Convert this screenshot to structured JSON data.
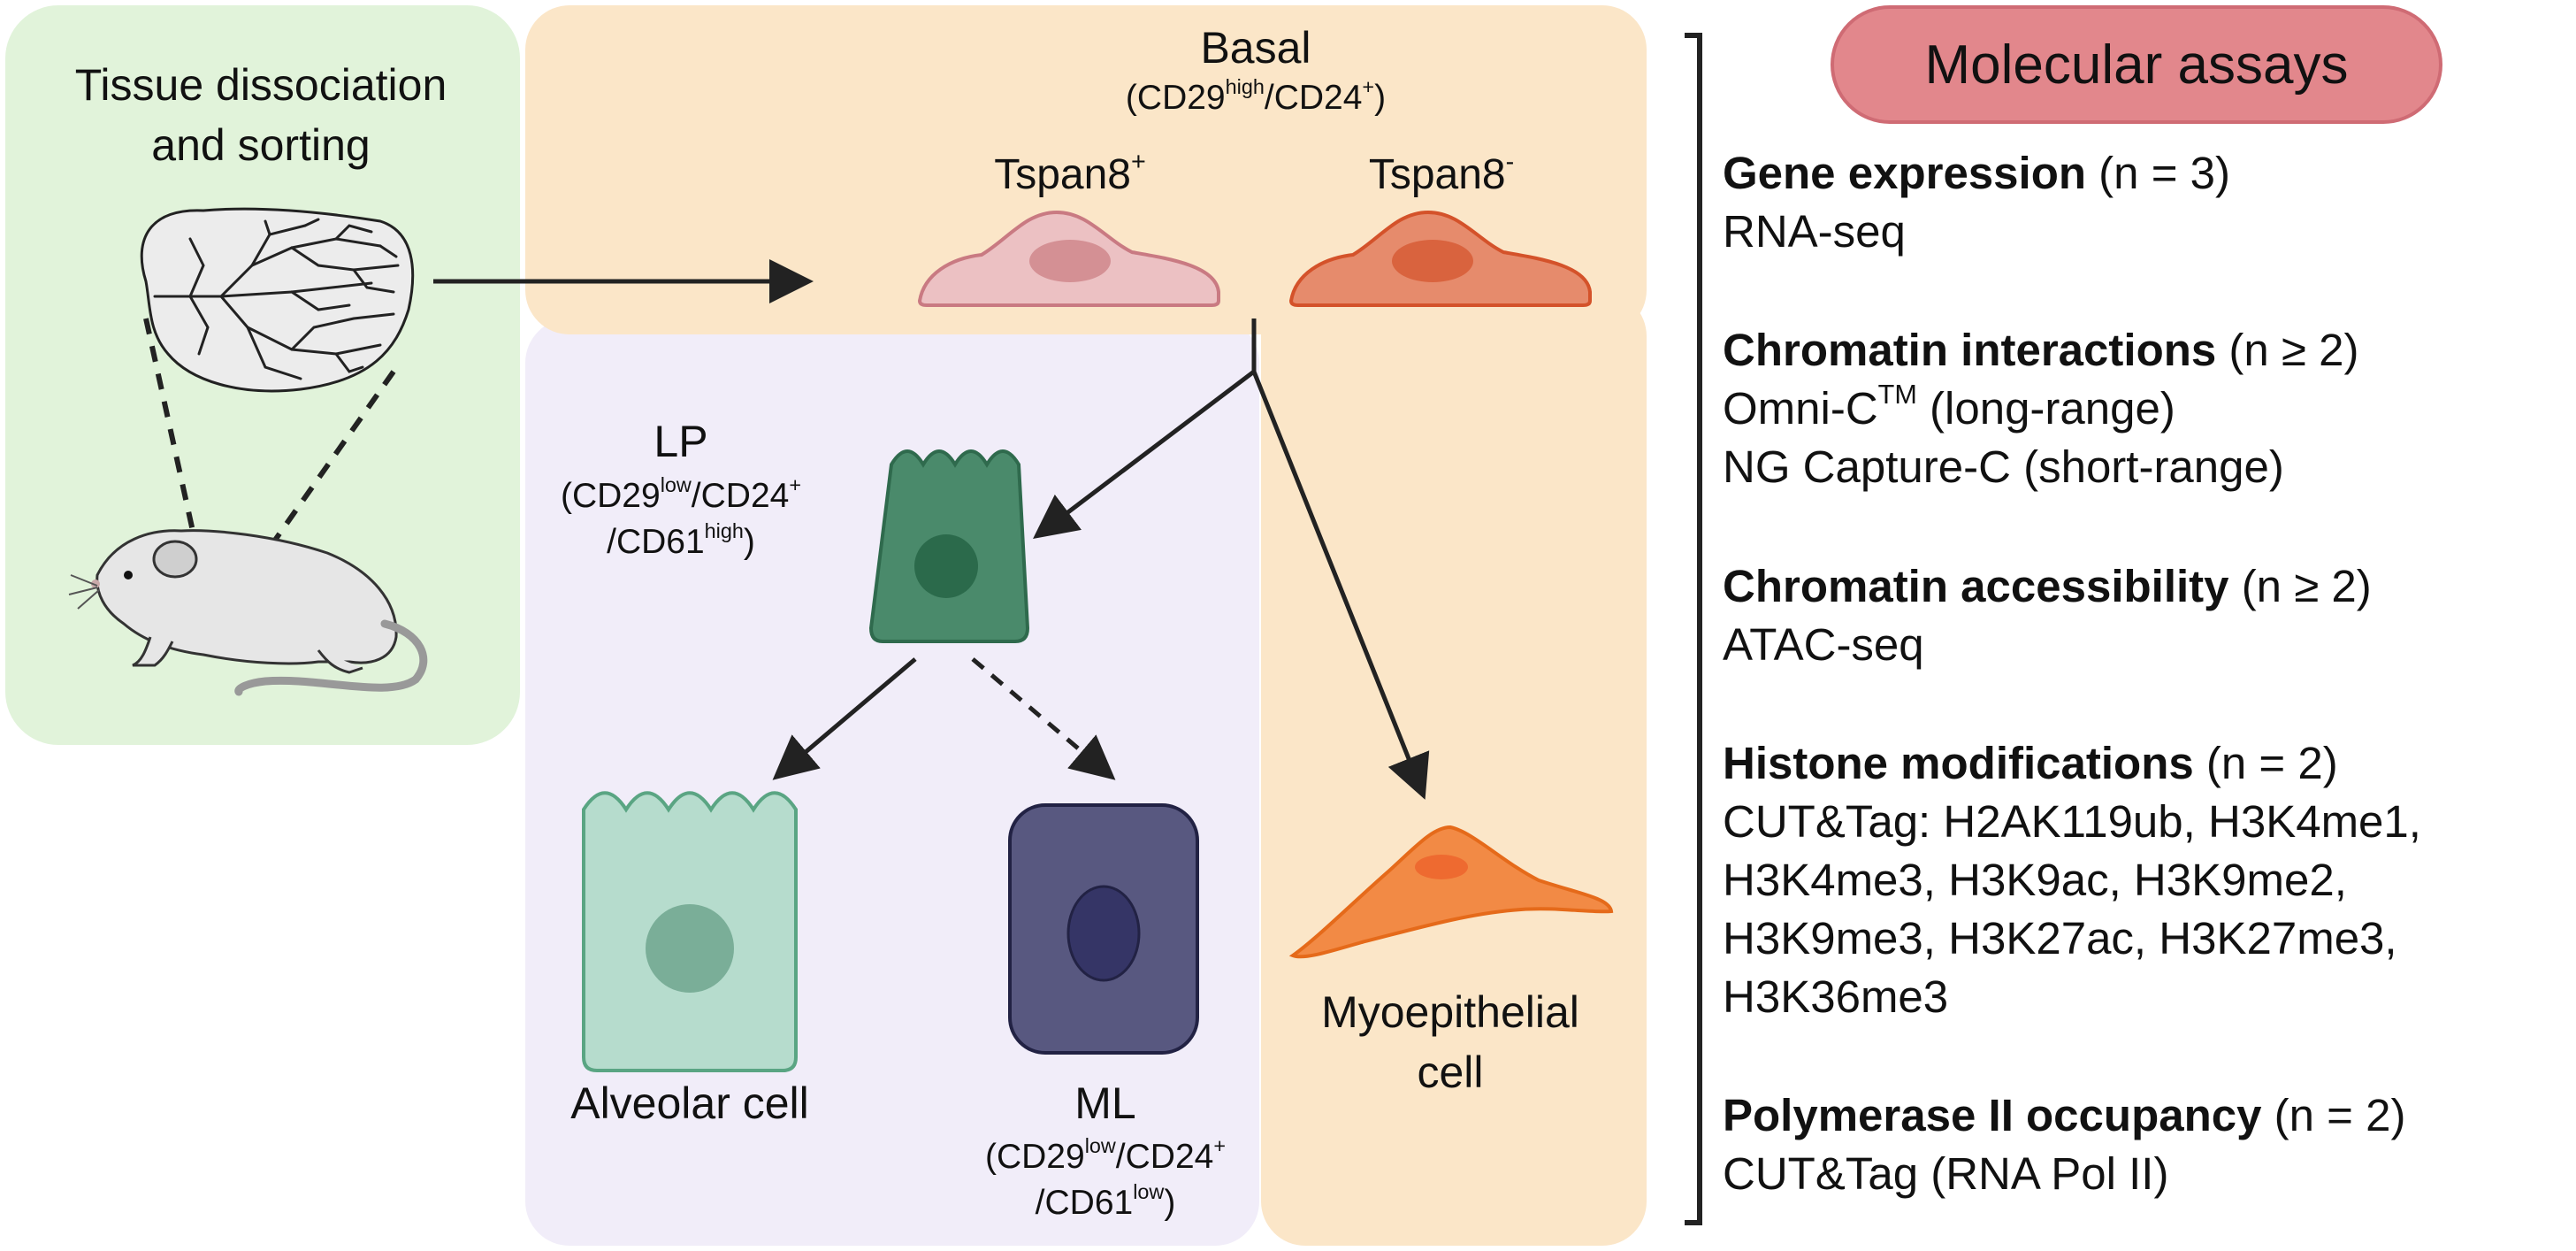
{
  "colors": {
    "green_panel": "#e1f3da",
    "basal_panel": "#fbe6c8",
    "luminal_panel": "#f1edf9",
    "assay_pill": "#e2878c",
    "lp_cell": "#4a8a6b",
    "alveolar_cell": "#b6dccd",
    "ml_cell": "#585880",
    "tspan_pos_cell": "#ecc1c3",
    "tspan_neg_cell": "#e68b6c",
    "myoepithelial_cell": "#f28a45"
  },
  "icons": [
    "mouse-icon",
    "mammary-tissue-icon",
    "arrow-icon",
    "bracket-icon"
  ],
  "left_panel": {
    "title_line1": "Tissue dissociation",
    "title_line2": "and sorting"
  },
  "basal": {
    "title": "Basal",
    "markers": {
      "a": "(CD29",
      "a_sup": "high",
      "b": "/CD24",
      "b_sup": "+",
      "c": ")"
    },
    "tspan_pos": {
      "label": "Tspan8",
      "sup": "+"
    },
    "tspan_neg": {
      "label": "Tspan8",
      "sup": "-"
    }
  },
  "lp": {
    "title": "LP",
    "line1": {
      "a": "(CD29",
      "a_sup": "low",
      "b": "/CD24",
      "b_sup": "+"
    },
    "line2": {
      "a": "/CD61",
      "a_sup": "high",
      "b": ")"
    }
  },
  "alveolar": {
    "label": "Alveolar cell"
  },
  "ml": {
    "title": "ML",
    "line1": {
      "a": "(CD29",
      "a_sup": "low",
      "b": "/CD24",
      "b_sup": "+"
    },
    "line2": {
      "a": "/CD61",
      "a_sup": "low",
      "b": ")"
    }
  },
  "myoepithelial": {
    "line1": "Myoepithelial",
    "line2": "cell"
  },
  "assays": {
    "title": "Molecular assays",
    "gene": {
      "bold": "Gene expression",
      "n": " (n = 3)",
      "l1": "RNA-seq"
    },
    "chrom_int": {
      "bold": "Chromatin interactions",
      "n": " (n ≥ 2)",
      "l1a": "Omni-C",
      "l1sup": "TM",
      "l1b": " (long-range)",
      "l2": "NG Capture-C (short-range)"
    },
    "chrom_acc": {
      "bold": "Chromatin accessibility",
      "n": " (n ≥ 2)",
      "l1": "ATAC-seq"
    },
    "histone": {
      "bold": "Histone modifications",
      "n": " (n = 2)",
      "l1": "CUT&Tag: H2AK119ub, H3K4me1,",
      "l2": "H3K4me3, H3K9ac, H3K9me2,",
      "l3": "H3K9me3, H3K27ac, H3K27me3,",
      "l4": "H3K36me3"
    },
    "polii": {
      "bold": "Polymerase II occupancy",
      "n": " (n = 2)",
      "l1": "CUT&Tag (RNA Pol II)"
    }
  }
}
